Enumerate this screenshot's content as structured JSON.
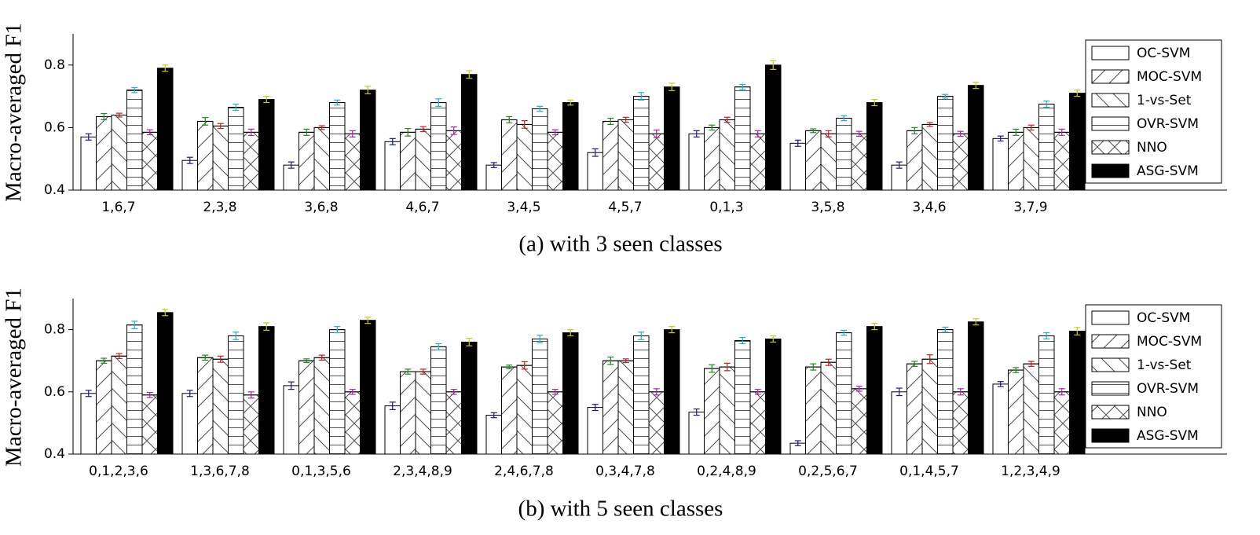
{
  "chart_data": [
    {
      "type": "bar",
      "caption": "(a) with 3 seen classes",
      "y_label": "Macro-averaged F1",
      "categories": [
        "1,6,7",
        "2,3,8",
        "3,6,8",
        "4,6,7",
        "3,4,5",
        "4,5,7",
        "0,1,3",
        "3,5,8",
        "3,4,6",
        "3,7,9"
      ],
      "ylim": [
        0.4,
        0.9
      ],
      "yticks": [
        0.4,
        0.6,
        0.8
      ],
      "legend": "upper right",
      "series": [
        {
          "name": "OC-SVM",
          "color": "#ffffff",
          "hatch": "",
          "error_color": "#1a1a8c",
          "values": [
            0.57,
            0.495,
            0.48,
            0.555,
            0.48,
            0.52,
            0.58,
            0.55,
            0.48,
            0.565
          ],
          "errors": [
            0.01,
            0.01,
            0.01,
            0.01,
            0.008,
            0.012,
            0.01,
            0.01,
            0.01,
            0.008
          ]
        },
        {
          "name": "MOC-SVM",
          "color": "#ffffff",
          "hatch": "/",
          "error_color": "#1a8c1a",
          "values": [
            0.635,
            0.62,
            0.585,
            0.585,
            0.625,
            0.62,
            0.6,
            0.59,
            0.59,
            0.585
          ],
          "errors": [
            0.01,
            0.012,
            0.01,
            0.012,
            0.01,
            0.01,
            0.008,
            0.006,
            0.01,
            0.01
          ]
        },
        {
          "name": "1-vs-Set",
          "color": "#ffffff",
          "hatch": "\\",
          "error_color": "#c02020",
          "values": [
            0.64,
            0.605,
            0.6,
            0.595,
            0.61,
            0.625,
            0.625,
            0.58,
            0.61,
            0.6
          ],
          "errors": [
            0.006,
            0.008,
            0.006,
            0.008,
            0.012,
            0.008,
            0.008,
            0.01,
            0.006,
            0.008
          ]
        },
        {
          "name": "OVR-SVM",
          "color": "#ffffff",
          "hatch": "-",
          "error_color": "#20b0c8",
          "values": [
            0.72,
            0.665,
            0.68,
            0.68,
            0.66,
            0.7,
            0.73,
            0.63,
            0.7,
            0.675
          ],
          "errors": [
            0.008,
            0.01,
            0.008,
            0.012,
            0.008,
            0.012,
            0.008,
            0.008,
            0.006,
            0.01
          ]
        },
        {
          "name": "NNO",
          "color": "#ffffff",
          "hatch": "x",
          "error_color": "#b020b0",
          "values": [
            0.585,
            0.585,
            0.58,
            0.59,
            0.585,
            0.58,
            0.58,
            0.58,
            0.58,
            0.585
          ],
          "errors": [
            0.008,
            0.01,
            0.01,
            0.012,
            0.008,
            0.012,
            0.01,
            0.008,
            0.008,
            0.01
          ]
        },
        {
          "name": "ASG-SVM",
          "color": "#000000",
          "hatch": "",
          "error_color": "#c8c820",
          "values": [
            0.79,
            0.69,
            0.72,
            0.77,
            0.68,
            0.73,
            0.8,
            0.68,
            0.735,
            0.71
          ],
          "errors": [
            0.01,
            0.01,
            0.012,
            0.012,
            0.008,
            0.012,
            0.014,
            0.01,
            0.01,
            0.01
          ]
        }
      ]
    },
    {
      "type": "bar",
      "caption": "(b) with 5 seen classes",
      "y_label": "Macro-averaged F1",
      "categories": [
        "0,1,2,3,6",
        "1,3,6,7,8",
        "0,1,3,5,6",
        "2,3,4,8,9",
        "2,4,6,7,8",
        "0,3,4,7,8",
        "0,2,4,8,9",
        "0,2,5,6,7",
        "0,1,4,5,7",
        "1,2,3,4,9"
      ],
      "ylim": [
        0.4,
        0.9
      ],
      "yticks": [
        0.4,
        0.6,
        0.8
      ],
      "legend": "upper right",
      "series": [
        {
          "name": "OC-SVM",
          "color": "#ffffff",
          "hatch": "",
          "error_color": "#1a1a8c",
          "values": [
            0.595,
            0.595,
            0.62,
            0.555,
            0.525,
            0.55,
            0.535,
            0.435,
            0.6,
            0.625
          ],
          "errors": [
            0.01,
            0.01,
            0.012,
            0.012,
            0.008,
            0.01,
            0.01,
            0.008,
            0.012,
            0.008
          ]
        },
        {
          "name": "MOC-SVM",
          "color": "#ffffff",
          "hatch": "/",
          "error_color": "#1a8c1a",
          "values": [
            0.7,
            0.71,
            0.7,
            0.665,
            0.68,
            0.7,
            0.675,
            0.68,
            0.69,
            0.67
          ],
          "errors": [
            0.008,
            0.008,
            0.006,
            0.008,
            0.006,
            0.012,
            0.012,
            0.01,
            0.008,
            0.008
          ]
        },
        {
          "name": "1-vs-Set",
          "color": "#ffffff",
          "hatch": "\\",
          "error_color": "#c02020",
          "values": [
            0.715,
            0.705,
            0.71,
            0.665,
            0.685,
            0.7,
            0.68,
            0.695,
            0.705,
            0.69
          ],
          "errors": [
            0.008,
            0.01,
            0.008,
            0.008,
            0.012,
            0.006,
            0.012,
            0.01,
            0.014,
            0.008
          ]
        },
        {
          "name": "OVR-SVM",
          "color": "#ffffff",
          "hatch": "-",
          "error_color": "#20b0c8",
          "values": [
            0.815,
            0.78,
            0.8,
            0.745,
            0.77,
            0.78,
            0.765,
            0.79,
            0.8,
            0.78
          ],
          "errors": [
            0.012,
            0.012,
            0.01,
            0.01,
            0.012,
            0.012,
            0.01,
            0.008,
            0.008,
            0.01
          ]
        },
        {
          "name": "NNO",
          "color": "#ffffff",
          "hatch": "x",
          "error_color": "#b020b0",
          "values": [
            0.59,
            0.59,
            0.6,
            0.6,
            0.6,
            0.6,
            0.6,
            0.61,
            0.6,
            0.6
          ],
          "errors": [
            0.008,
            0.01,
            0.008,
            0.008,
            0.008,
            0.01,
            0.008,
            0.008,
            0.01,
            0.01
          ]
        },
        {
          "name": "ASG-SVM",
          "color": "#000000",
          "hatch": "",
          "error_color": "#c8c820",
          "values": [
            0.855,
            0.81,
            0.83,
            0.76,
            0.79,
            0.8,
            0.77,
            0.81,
            0.825,
            0.795
          ],
          "errors": [
            0.01,
            0.012,
            0.01,
            0.012,
            0.01,
            0.01,
            0.01,
            0.01,
            0.01,
            0.012
          ]
        }
      ]
    }
  ]
}
